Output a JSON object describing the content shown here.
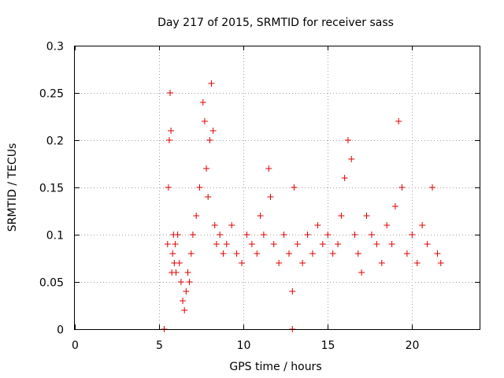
{
  "chart_data": {
    "type": "scatter",
    "title": "Day 217 of 2015, SRMTID for receiver sass",
    "xlabel": "GPS time / hours",
    "ylabel": "SRMTID / TECUs",
    "xlim": [
      0,
      24
    ],
    "ylim": [
      0,
      0.3
    ],
    "x_ticks": [
      0,
      5,
      10,
      15,
      20
    ],
    "x_tick_labels": [
      "0",
      "5",
      "10",
      "15",
      "20"
    ],
    "y_ticks": [
      0,
      0.05,
      0.1,
      0.15,
      0.2,
      0.25,
      0.3
    ],
    "y_tick_labels": [
      "0",
      "0.05",
      "0.1",
      "0.15",
      "0.2",
      "0.25",
      "0.3"
    ],
    "grid": true,
    "marker": "+",
    "color": "#e00000",
    "series": [
      {
        "name": "SRMTID",
        "x": [
          5.3,
          12.9,
          5.5,
          5.55,
          5.6,
          5.65,
          5.7,
          5.75,
          5.8,
          5.85,
          5.9,
          5.95,
          6.0,
          6.1,
          6.2,
          6.3,
          6.4,
          6.5,
          6.6,
          6.7,
          6.8,
          6.9,
          7.0,
          7.2,
          7.4,
          7.6,
          7.7,
          7.8,
          7.9,
          8.0,
          8.1,
          8.2,
          8.3,
          8.4,
          8.6,
          8.8,
          9.0,
          9.3,
          9.6,
          9.9,
          10.2,
          10.5,
          10.8,
          11.0,
          11.2,
          11.5,
          11.6,
          11.8,
          12.1,
          12.4,
          12.7,
          12.9,
          13.0,
          13.2,
          13.5,
          13.8,
          14.1,
          14.4,
          14.7,
          15.0,
          15.3,
          15.6,
          15.8,
          16.0,
          16.2,
          16.4,
          16.6,
          16.8,
          17.0,
          17.3,
          17.6,
          17.9,
          18.2,
          18.5,
          18.8,
          19.0,
          19.2,
          19.4,
          19.7,
          20.0,
          20.3,
          20.6,
          20.9,
          21.2,
          21.5,
          21.7
        ],
        "y": [
          0.0,
          0.0,
          0.09,
          0.15,
          0.2,
          0.25,
          0.21,
          0.06,
          0.08,
          0.1,
          0.07,
          0.09,
          0.06,
          0.1,
          0.07,
          0.05,
          0.03,
          0.02,
          0.04,
          0.06,
          0.05,
          0.08,
          0.1,
          0.12,
          0.15,
          0.24,
          0.22,
          0.17,
          0.14,
          0.2,
          0.26,
          0.21,
          0.11,
          0.09,
          0.1,
          0.08,
          0.09,
          0.11,
          0.08,
          0.07,
          0.1,
          0.09,
          0.08,
          0.12,
          0.1,
          0.17,
          0.14,
          0.09,
          0.07,
          0.1,
          0.08,
          0.04,
          0.15,
          0.09,
          0.07,
          0.1,
          0.08,
          0.11,
          0.09,
          0.1,
          0.08,
          0.09,
          0.12,
          0.16,
          0.2,
          0.18,
          0.1,
          0.08,
          0.06,
          0.12,
          0.1,
          0.09,
          0.07,
          0.11,
          0.09,
          0.13,
          0.22,
          0.15,
          0.08,
          0.1,
          0.07,
          0.11,
          0.09,
          0.15,
          0.08,
          0.07
        ]
      }
    ]
  }
}
